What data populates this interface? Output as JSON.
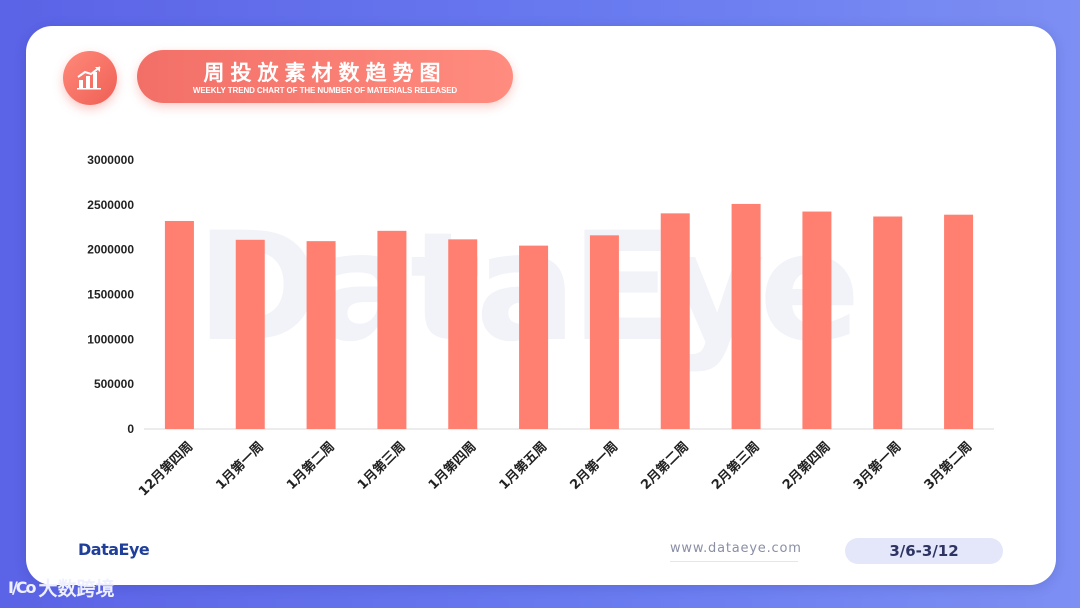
{
  "header": {
    "title": "周投放素材数趋势图",
    "subtitle": "WEEKLY TREND CHART OF THE NUMBER OF MATERIALS RELEASED",
    "icon": "bar-chart-trend-icon"
  },
  "watermark": "DataEye",
  "footer": {
    "brand": "DataEye",
    "website": "www.dataeye.com",
    "date_range": "3/6-3/12",
    "corner_logo_mark": "I/Co",
    "corner_logo_text": "大数跨境"
  },
  "colors": {
    "bar": "#ff8070",
    "accent": "#f26f67",
    "background": "#6270ea",
    "axis_text": "#222222"
  },
  "chart_data": {
    "type": "bar",
    "categories": [
      "12月第四周",
      "1月第一周",
      "1月第二周",
      "1月第三周",
      "1月第四周",
      "1月第五周",
      "2月第一周",
      "2月第二周",
      "2月第三周",
      "2月第四周",
      "3月第一周",
      "3月第二周"
    ],
    "values": [
      2320000,
      2110000,
      2095000,
      2210000,
      2115000,
      2045000,
      2160000,
      2405000,
      2510000,
      2425000,
      2370000,
      2390000
    ],
    "yticks": [
      0,
      500000,
      1000000,
      1500000,
      2000000,
      2500000,
      3000000
    ],
    "ylim": [
      0,
      3000000
    ],
    "grid": false,
    "legend": "none"
  }
}
